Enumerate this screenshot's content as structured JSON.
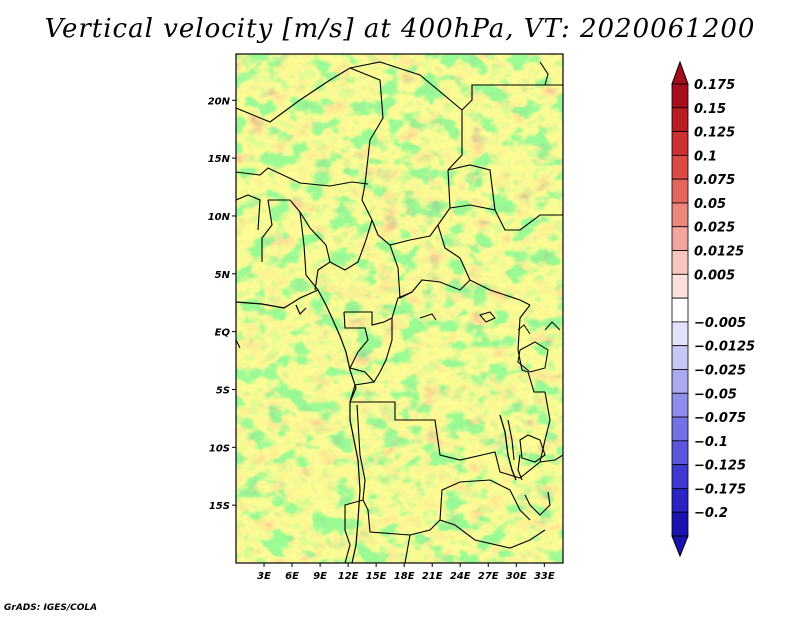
{
  "title": "Vertical velocity [m/s] at 400hPa, VT: 2020061200",
  "credit": "GrADS: IGES/COLA",
  "map": {
    "lon_range": [
      0,
      35
    ],
    "lat_range": [
      -20,
      24
    ],
    "lat_ticks": [
      {
        "value": 20,
        "label": "20N"
      },
      {
        "value": 15,
        "label": "15N"
      },
      {
        "value": 10,
        "label": "10N"
      },
      {
        "value": 5,
        "label": "5N"
      },
      {
        "value": 0,
        "label": "EQ"
      },
      {
        "value": -5,
        "label": "5S"
      },
      {
        "value": -10,
        "label": "10S"
      },
      {
        "value": -15,
        "label": "15S"
      }
    ],
    "lon_ticks": [
      {
        "value": 3,
        "label": "3E"
      },
      {
        "value": 6,
        "label": "6E"
      },
      {
        "value": 9,
        "label": "9E"
      },
      {
        "value": 12,
        "label": "12E"
      },
      {
        "value": 15,
        "label": "15E"
      },
      {
        "value": 18,
        "label": "18E"
      },
      {
        "value": 21,
        "label": "21E"
      },
      {
        "value": 24,
        "label": "24E"
      },
      {
        "value": 27,
        "label": "27E"
      },
      {
        "value": 30,
        "label": "30E"
      },
      {
        "value": 33,
        "label": "33E"
      }
    ]
  },
  "colorbar": {
    "levels": [
      {
        "label": "0.175",
        "color": "#a50d1c"
      },
      {
        "label": "0.15",
        "color": "#b81d24"
      },
      {
        "label": "0.125",
        "color": "#cc3132"
      },
      {
        "label": "0.1",
        "color": "#db4a45"
      },
      {
        "label": "0.075",
        "color": "#e4675f"
      },
      {
        "label": "0.05",
        "color": "#ec857c"
      },
      {
        "label": "0.025",
        "color": "#f2a59c"
      },
      {
        "label": "0.0125",
        "color": "#f7c5bf"
      },
      {
        "label": "0.005",
        "color": "#fbe1dd"
      },
      {
        "label": "",
        "color": "#ffffff"
      },
      {
        "label": "−0.005",
        "color": "#e2e2fb"
      },
      {
        "label": "−0.0125",
        "color": "#c7c7f6"
      },
      {
        "label": "−0.025",
        "color": "#abaaf1"
      },
      {
        "label": "−0.05",
        "color": "#8f8deb"
      },
      {
        "label": "−0.075",
        "color": "#7471e4"
      },
      {
        "label": "−0.1",
        "color": "#5955dc"
      },
      {
        "label": "−0.125",
        "color": "#3f39d2"
      },
      {
        "label": "−0.175",
        "color": "#2a22c2"
      },
      {
        "label": "−0.2",
        "color": "#1a12ae"
      },
      {
        "label": "",
        "color": "#0c06a0"
      }
    ],
    "top_cap_color": "#a50d1c",
    "bottom_cap_color": "#1a12ae"
  }
}
